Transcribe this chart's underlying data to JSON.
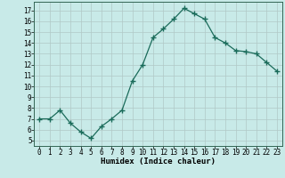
{
  "x": [
    0,
    1,
    2,
    3,
    4,
    5,
    6,
    7,
    8,
    9,
    10,
    11,
    12,
    13,
    14,
    15,
    16,
    17,
    18,
    19,
    20,
    21,
    22,
    23
  ],
  "y": [
    7.0,
    7.0,
    7.8,
    6.6,
    5.8,
    5.2,
    6.3,
    7.0,
    7.8,
    10.5,
    12.0,
    14.5,
    15.3,
    16.2,
    17.2,
    16.7,
    16.2,
    14.5,
    14.0,
    13.3,
    13.2,
    13.0,
    12.2,
    11.4
  ],
  "line_color": "#1a6b5a",
  "marker": "+",
  "marker_size": 4,
  "marker_lw": 1.0,
  "bg_color": "#c8eae8",
  "grid_color": "#b0c8c6",
  "xlabel": "Humidex (Indice chaleur)",
  "ylabel_ticks": [
    5,
    6,
    7,
    8,
    9,
    10,
    11,
    12,
    13,
    14,
    15,
    16,
    17
  ],
  "ylim": [
    4.5,
    17.8
  ],
  "xlim": [
    -0.5,
    23.5
  ],
  "xticks": [
    0,
    1,
    2,
    3,
    4,
    5,
    6,
    7,
    8,
    9,
    10,
    11,
    12,
    13,
    14,
    15,
    16,
    17,
    18,
    19,
    20,
    21,
    22,
    23
  ],
  "xtick_labels": [
    "0",
    "1",
    "2",
    "3",
    "4",
    "5",
    "6",
    "7",
    "8",
    "9",
    "10",
    "11",
    "12",
    "13",
    "14",
    "15",
    "16",
    "17",
    "18",
    "19",
    "20",
    "21",
    "22",
    "23"
  ],
  "label_fontsize": 6.5,
  "tick_fontsize": 5.5,
  "linewidth": 0.9
}
